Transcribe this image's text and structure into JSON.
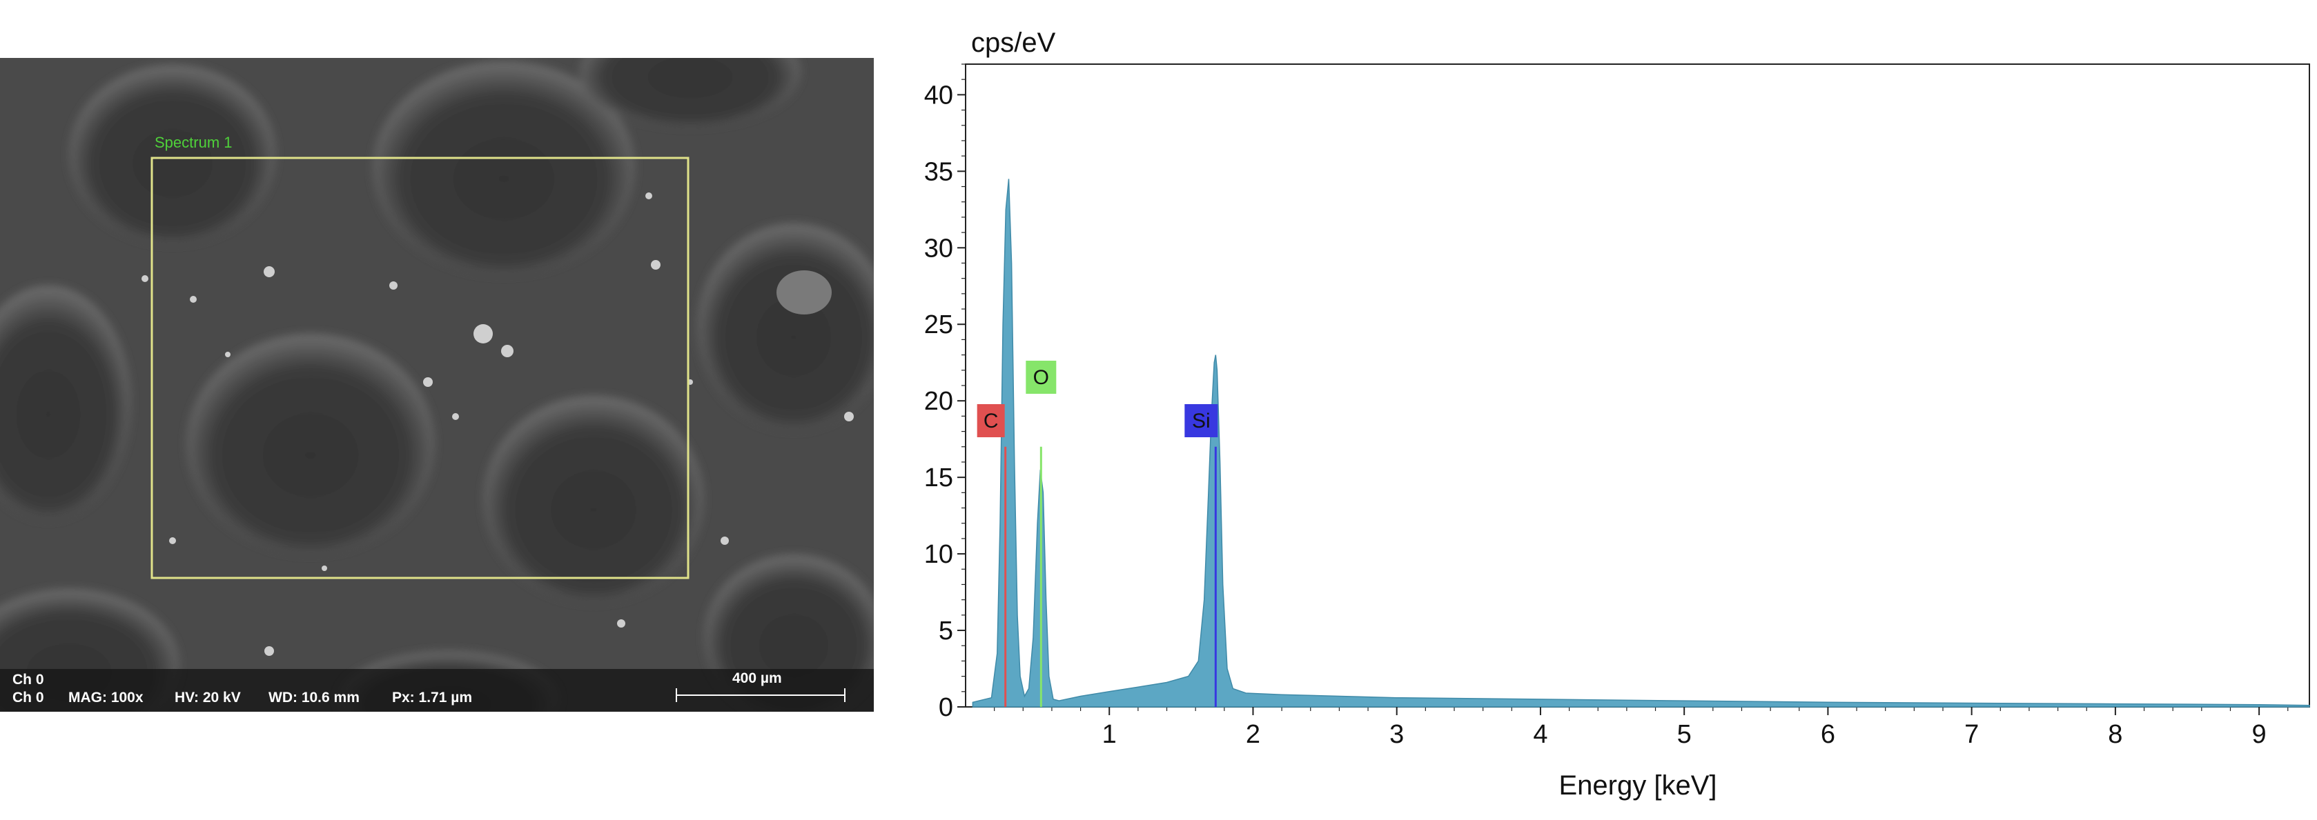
{
  "sem": {
    "roi_label": "Spectrum 1",
    "channel_line1": "Ch 0",
    "channel_line2": "Ch 0",
    "mag": "MAG: 100x",
    "hv": "HV: 20 kV",
    "wd": "WD: 10.6 mm",
    "px": "Px: 1.71 µm",
    "scale_bar": "400 µm",
    "colors": {
      "roi_box": "#e0e28a",
      "roi_label": "#4fd13a"
    }
  },
  "chart_data": {
    "type": "area",
    "ylabel": "cps/eV",
    "xlabel": "Energy [keV]",
    "xlim": [
      0.0,
      9.35
    ],
    "ylim": [
      0,
      42
    ],
    "x_ticks": [
      1,
      2,
      3,
      4,
      5,
      6,
      7,
      8,
      9
    ],
    "y_ticks": [
      0,
      5,
      10,
      15,
      20,
      25,
      30,
      35,
      40
    ],
    "grid": false,
    "fill_color": "#5ca7c4",
    "series": [
      {
        "x": [
          0.05,
          0.18,
          0.22,
          0.24,
          0.26,
          0.28,
          0.3,
          0.32,
          0.34,
          0.36,
          0.38,
          0.41,
          0.44,
          0.47,
          0.5,
          0.52,
          0.54,
          0.56,
          0.58,
          0.61,
          0.65,
          0.8,
          1.0,
          1.2,
          1.4,
          1.55,
          1.62,
          1.66,
          1.69,
          1.71,
          1.73,
          1.74,
          1.75,
          1.77,
          1.79,
          1.82,
          1.86,
          1.95,
          2.2,
          3.0,
          4.0,
          5.0,
          6.0,
          7.0,
          8.0,
          9.0,
          9.35
        ],
        "y": [
          0.3,
          0.6,
          3.5,
          12.0,
          25.0,
          32.5,
          34.5,
          29.0,
          16.0,
          6.0,
          2.0,
          0.7,
          1.2,
          4.5,
          12.0,
          15.5,
          14.0,
          7.0,
          2.0,
          0.5,
          0.4,
          0.7,
          1.0,
          1.3,
          1.6,
          2.0,
          3.0,
          7.0,
          14.0,
          19.0,
          22.5,
          23.0,
          22.0,
          16.0,
          8.0,
          2.5,
          1.2,
          0.9,
          0.8,
          0.6,
          0.5,
          0.4,
          0.3,
          0.25,
          0.2,
          0.15,
          0.1
        ]
      }
    ],
    "peaks": [
      {
        "element": "C",
        "energy": 0.277,
        "line_height": 17.0,
        "color": "#e05050"
      },
      {
        "element": "O",
        "energy": 0.525,
        "line_height": 17.0,
        "color": "#86e56a"
      },
      {
        "element": "Si",
        "energy": 1.74,
        "line_height": 17.0,
        "color": "#3838e0"
      }
    ]
  }
}
